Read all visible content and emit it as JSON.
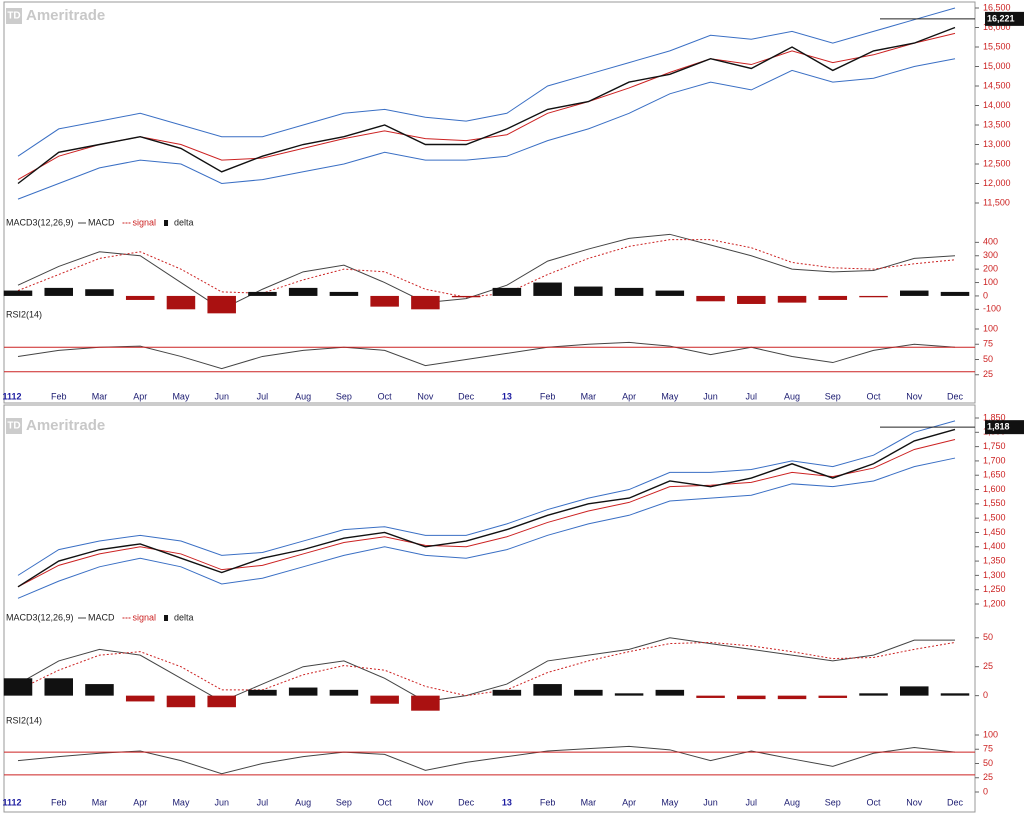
{
  "chart_data": [
    {
      "type": "price",
      "logo": "TD",
      "watermark": "Ameritrade",
      "ylim": [
        11500,
        16500
      ],
      "yticks": [
        {
          "value": 11500,
          "label": "11,500"
        },
        {
          "value": 12000,
          "label": "12,000"
        },
        {
          "value": 12500,
          "label": "12,500"
        },
        {
          "value": 13000,
          "label": "13,000"
        },
        {
          "value": 13500,
          "label": "13,500"
        },
        {
          "value": 14000,
          "label": "14,000"
        },
        {
          "value": 14500,
          "label": "14,500"
        },
        {
          "value": 15000,
          "label": "15,000"
        },
        {
          "value": 15500,
          "label": "15,500"
        },
        {
          "value": 16000,
          "label": "16,000"
        },
        {
          "value": 16500,
          "label": "16,500"
        }
      ],
      "last_value": {
        "value": 16221,
        "label": "16,221"
      },
      "series": [
        {
          "color": "#3a6fc4",
          "values": [
            12700,
            13400,
            13600,
            13800,
            13500,
            13200,
            13200,
            13500,
            13800,
            13900,
            13700,
            13600,
            13800,
            14500,
            14800,
            15100,
            15400,
            15800,
            15700,
            15900,
            15600,
            15900,
            16200,
            16500
          ]
        },
        {
          "color": "#3a6fc4",
          "values": [
            11600,
            12000,
            12400,
            12600,
            12500,
            12000,
            12100,
            12300,
            12500,
            12800,
            12600,
            12600,
            12700,
            13100,
            13400,
            13800,
            14300,
            14600,
            14400,
            14900,
            14600,
            14700,
            15000,
            15200
          ]
        },
        {
          "color": "#cc2222",
          "values": [
            12100,
            12700,
            13000,
            13200,
            13000,
            12600,
            12650,
            12900,
            13150,
            13350,
            13150,
            13100,
            13250,
            13800,
            14100,
            14450,
            14850,
            15200,
            15050,
            15400,
            15100,
            15300,
            15600,
            15850
          ]
        },
        {
          "color": "#111111",
          "values": [
            12000,
            12800,
            13000,
            13200,
            12900,
            12300,
            12700,
            13000,
            13200,
            13500,
            13000,
            13000,
            13400,
            13900,
            14100,
            14600,
            14800,
            15200,
            14950,
            15500,
            14900,
            15400,
            15600,
            16000
          ]
        }
      ]
    },
    {
      "type": "macd",
      "title": "MACD3(12,26,9)",
      "ylim": [
        -120,
        440
      ],
      "yticks": [
        -100,
        0,
        100,
        200,
        300,
        400
      ],
      "series": [
        {
          "name": "MACD",
          "color": "#444444",
          "style": "line",
          "values": [
            80,
            220,
            330,
            300,
            100,
            -100,
            50,
            180,
            230,
            100,
            -50,
            -20,
            80,
            260,
            350,
            430,
            460,
            380,
            300,
            200,
            180,
            190,
            280,
            300
          ]
        },
        {
          "name": "signal",
          "color": "#cc2222",
          "style": "dotted",
          "values": [
            40,
            160,
            280,
            330,
            200,
            30,
            20,
            120,
            200,
            180,
            50,
            -10,
            20,
            160,
            280,
            370,
            420,
            420,
            360,
            250,
            210,
            200,
            240,
            270
          ]
        },
        {
          "name": "delta",
          "color": "#111111",
          "negative_color": "#aa1111",
          "style": "bar",
          "values": [
            40,
            60,
            50,
            -30,
            -100,
            -130,
            30,
            60,
            30,
            -80,
            -100,
            -10,
            60,
            100,
            70,
            60,
            40,
            -40,
            -60,
            -50,
            -30,
            -10,
            40,
            30
          ]
        }
      ]
    },
    {
      "type": "rsi",
      "title": "RSI2(14)",
      "ylim": [
        0,
        100
      ],
      "yticks": [
        25,
        50,
        75,
        100
      ],
      "reference_lines": [
        70,
        30
      ],
      "categories": [
        "1112",
        "Feb",
        "Mar",
        "Apr",
        "May",
        "Jun",
        "Jul",
        "Aug",
        "Sep",
        "Oct",
        "Nov",
        "Dec",
        "13",
        "Feb",
        "Mar",
        "Apr",
        "May",
        "Jun",
        "Jul",
        "Aug",
        "Sep",
        "Oct",
        "Nov",
        "Dec"
      ],
      "series": [
        {
          "color": "#444444",
          "values": [
            55,
            65,
            70,
            72,
            55,
            35,
            55,
            65,
            70,
            65,
            40,
            50,
            60,
            70,
            75,
            78,
            72,
            58,
            70,
            55,
            45,
            65,
            75,
            70
          ]
        }
      ]
    },
    {
      "type": "price",
      "logo": "TD",
      "watermark": "Ameritrade",
      "ylim": [
        1200,
        1850
      ],
      "yticks": [
        {
          "value": 1200,
          "label": "1,200"
        },
        {
          "value": 1250,
          "label": "1,250"
        },
        {
          "value": 1300,
          "label": "1,300"
        },
        {
          "value": 1350,
          "label": "1,350"
        },
        {
          "value": 1400,
          "label": "1,400"
        },
        {
          "value": 1450,
          "label": "1,450"
        },
        {
          "value": 1500,
          "label": "1,500"
        },
        {
          "value": 1550,
          "label": "1,550"
        },
        {
          "value": 1600,
          "label": "1,600"
        },
        {
          "value": 1650,
          "label": "1,650"
        },
        {
          "value": 1700,
          "label": "1,700"
        },
        {
          "value": 1750,
          "label": "1,750"
        },
        {
          "value": 1800,
          "label": "1,800"
        },
        {
          "value": 1850,
          "label": "1,850"
        }
      ],
      "last_value": {
        "value": 1818,
        "label": "1,818"
      },
      "series": [
        {
          "color": "#3a6fc4",
          "values": [
            1300,
            1390,
            1420,
            1440,
            1420,
            1370,
            1380,
            1420,
            1460,
            1470,
            1440,
            1440,
            1480,
            1530,
            1570,
            1600,
            1660,
            1660,
            1670,
            1700,
            1680,
            1720,
            1800,
            1840
          ]
        },
        {
          "color": "#3a6fc4",
          "values": [
            1220,
            1280,
            1330,
            1360,
            1330,
            1270,
            1290,
            1330,
            1370,
            1400,
            1370,
            1360,
            1390,
            1440,
            1480,
            1510,
            1560,
            1570,
            1580,
            1620,
            1610,
            1630,
            1680,
            1710
          ]
        },
        {
          "color": "#cc2222",
          "values": [
            1260,
            1335,
            1375,
            1400,
            1375,
            1320,
            1335,
            1375,
            1415,
            1435,
            1405,
            1400,
            1435,
            1485,
            1525,
            1555,
            1610,
            1615,
            1625,
            1660,
            1645,
            1675,
            1740,
            1775
          ]
        },
        {
          "color": "#111111",
          "values": [
            1260,
            1350,
            1390,
            1410,
            1360,
            1310,
            1360,
            1390,
            1430,
            1450,
            1400,
            1420,
            1460,
            1510,
            1550,
            1570,
            1630,
            1610,
            1640,
            1690,
            1640,
            1690,
            1770,
            1810
          ]
        }
      ]
    },
    {
      "type": "macd",
      "title": "MACD3(12,26,9)",
      "ylim": [
        -15,
        55
      ],
      "yticks": [
        0,
        25,
        50
      ],
      "series": [
        {
          "name": "MACD",
          "color": "#444444",
          "style": "line",
          "values": [
            10,
            30,
            40,
            35,
            15,
            -5,
            10,
            25,
            30,
            15,
            -5,
            0,
            10,
            30,
            35,
            40,
            50,
            45,
            40,
            35,
            30,
            35,
            48,
            48
          ]
        },
        {
          "name": "signal",
          "color": "#cc2222",
          "style": "dotted",
          "values": [
            5,
            22,
            35,
            38,
            25,
            5,
            5,
            18,
            26,
            22,
            8,
            0,
            5,
            20,
            30,
            38,
            45,
            46,
            43,
            38,
            32,
            33,
            40,
            46
          ]
        },
        {
          "name": "delta",
          "color": "#111111",
          "negative_color": "#aa1111",
          "style": "bar",
          "values": [
            15,
            15,
            10,
            -5,
            -10,
            -10,
            5,
            7,
            5,
            -7,
            -13,
            0,
            5,
            10,
            5,
            2,
            5,
            -2,
            -3,
            -3,
            -2,
            2,
            8,
            2
          ]
        }
      ]
    },
    {
      "type": "rsi",
      "title": "RSI2(14)",
      "ylim": [
        0,
        100
      ],
      "yticks": [
        0,
        25,
        50,
        75,
        100
      ],
      "reference_lines": [
        70,
        30
      ],
      "categories": [
        "1112",
        "Feb",
        "Mar",
        "Apr",
        "May",
        "Jun",
        "Jul",
        "Aug",
        "Sep",
        "Oct",
        "Nov",
        "Dec",
        "13",
        "Feb",
        "Mar",
        "Apr",
        "May",
        "Jun",
        "Jul",
        "Aug",
        "Sep",
        "Oct",
        "Nov",
        "Dec"
      ],
      "series": [
        {
          "color": "#444444",
          "values": [
            55,
            62,
            68,
            72,
            55,
            32,
            50,
            62,
            70,
            66,
            38,
            52,
            62,
            72,
            76,
            80,
            74,
            55,
            72,
            58,
            45,
            68,
            78,
            70
          ]
        }
      ]
    }
  ]
}
